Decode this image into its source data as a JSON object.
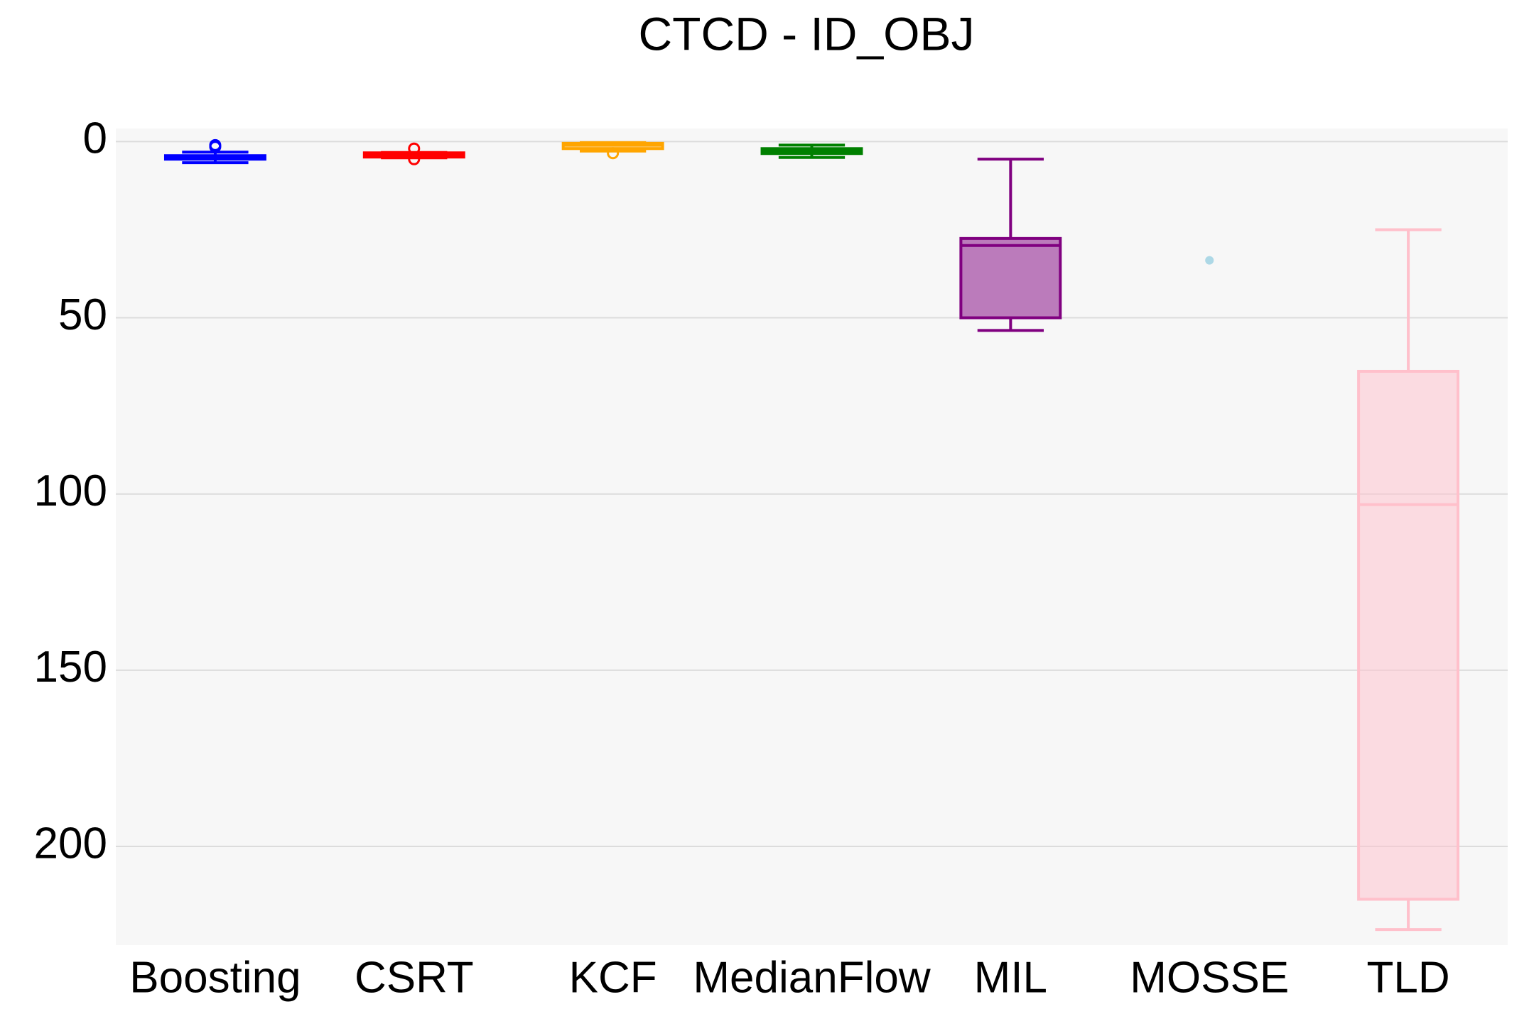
{
  "chart_data": {
    "type": "box",
    "title": "CTCD - ID_OBJ",
    "ylim": [
      -3.7,
      228
    ],
    "yticks": [
      0,
      50,
      100,
      150,
      200
    ],
    "y_reversed": true,
    "grid": true,
    "series": [
      {
        "name": "Boosting",
        "color": "#0000ff",
        "stats": {
          "min": 3,
          "q1": 4,
          "median": 4.5,
          "q3": 5,
          "max": 6
        },
        "outliers": [
          1,
          1.5
        ]
      },
      {
        "name": "CSRT",
        "color": "#ff0000",
        "stats": {
          "min": 3.1,
          "q1": 3.2,
          "median": 3.8,
          "q3": 4.4,
          "max": 4.6
        },
        "outliers": [
          2,
          5
        ]
      },
      {
        "name": "KCF",
        "color": "#ffa500",
        "stats": {
          "min": 0.3,
          "q1": 0.5,
          "median": 1,
          "q3": 2,
          "max": 2.7
        },
        "outliers": [
          3.3
        ]
      },
      {
        "name": "MedianFlow",
        "color": "#008000",
        "stats": {
          "min": 1,
          "q1": 2,
          "median": 2.7,
          "q3": 3.4,
          "max": 4.5
        },
        "outliers": []
      },
      {
        "name": "MIL",
        "color": "#800080",
        "stats": {
          "min": 5,
          "q1": 27.5,
          "median": 29.5,
          "q3": 50,
          "max": 53.6
        },
        "outliers": []
      },
      {
        "name": "MOSSE",
        "color": "#add8e6",
        "stats": null,
        "outliers": [
          33.7
        ]
      },
      {
        "name": "TLD",
        "color": "#ffc0cb",
        "stats": {
          "min": 25,
          "q1": 65.2,
          "median": 103,
          "q3": 215,
          "max": 223.6
        },
        "outliers": []
      }
    ]
  }
}
